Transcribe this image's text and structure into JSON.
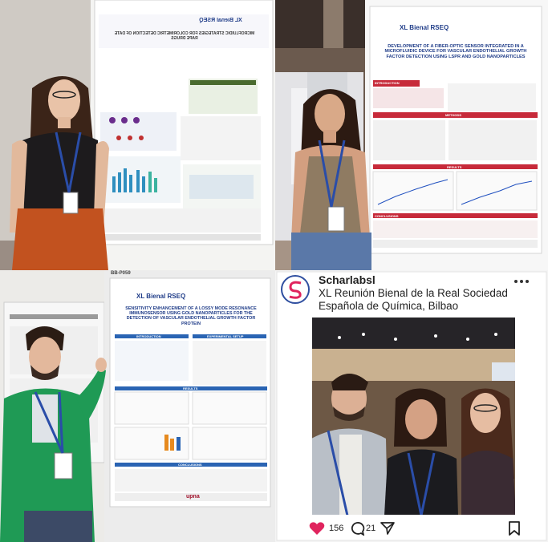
{
  "collage": {
    "panel_top_left": {
      "poster_label": "XL Bienal RSEQ",
      "poster_title": "MICROFLUIDIC STRATEGIES FOR COLORIMETRIC DETECTION OF DATE RAPE DRUGS",
      "note": "poster image is mirrored in the photo"
    },
    "panel_top_right": {
      "poster_label": "XL Bienal RSEQ",
      "poster_title": "DEVELOPMENT OF A FIBER-OPTIC SENSOR INTEGRATED IN A MICROFLUIDIC DEVICE FOR VASCULAR ENDOTHELIAL GROWTH FACTOR DETECTION USING LSPR AND GOLD NANOPARTICLES",
      "sections": [
        "INTRODUCTION",
        "METHODS",
        "RESULTS",
        "CONCLUSIONS"
      ]
    },
    "panel_bottom_left": {
      "board_number": "BB-P059",
      "poster_label": "XL Bienal RSEQ",
      "poster_title": "SENSITIVITY ENHANCEMENT OF A LOSSY MODE RESONANCE IMMUNOSENSOR USING GOLD NANOPARTICLES FOR THE DETECTION OF VASCULAR ENDOTHELIAL GROWTH FACTOR PROTEIN",
      "sections": [
        "INTRODUCTION",
        "EXPERIMENTAL SETUP",
        "RESULTS",
        "CONCLUSIONS"
      ],
      "sponsor": "upna"
    },
    "panel_bottom_right": {
      "account": "Scharlabsl",
      "caption_line1": "XL Reunión Bienal de la Real Sociedad",
      "caption_line2": "Española de Química, Bilbao",
      "likes": "156",
      "comments": "21",
      "icons": [
        "logo-icon",
        "more-icon",
        "heart-icon",
        "comment-icon",
        "share-icon",
        "bookmark-icon"
      ],
      "accent": "#e0245e"
    }
  }
}
